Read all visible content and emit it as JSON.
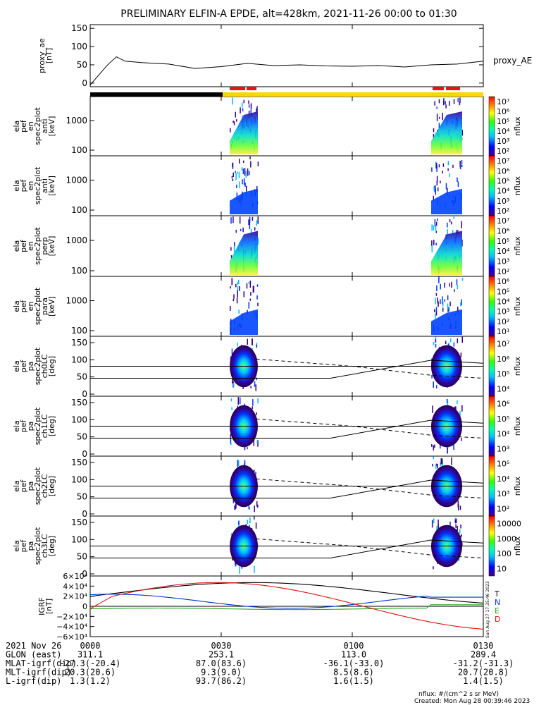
{
  "title": "PRELIMINARY ELFIN-A EPDE, alt=428km, 2021-11-26 00:00 to 01:30",
  "chart_data": [
    {
      "type": "line",
      "id": "proxy_ae",
      "ylabel": [
        "proxy_ae",
        "[nT]"
      ],
      "legend": "proxy_AE",
      "ylim": [
        -10,
        160
      ],
      "yticks": [
        0,
        50,
        100,
        150
      ],
      "x_minutes": [
        0,
        4,
        6,
        8,
        12,
        18,
        24,
        30,
        36,
        42,
        48,
        54,
        60,
        66,
        72,
        78,
        84,
        90
      ],
      "values": [
        -5,
        50,
        72,
        60,
        56,
        52,
        40,
        45,
        54,
        48,
        50,
        47,
        46,
        48,
        44,
        50,
        52,
        60
      ]
    },
    {
      "type": "heatmap",
      "id": "en_anti",
      "ylabel": [
        "ela",
        "pef",
        "en",
        "spec2plot",
        "anti",
        "[keV]"
      ],
      "yticks": [
        "100",
        "1000"
      ],
      "colorbar": {
        "label": "nflux",
        "ticks": [
          "10²",
          "10³",
          "10⁴",
          "10⁵",
          "10⁶",
          "10⁷"
        ]
      }
    },
    {
      "type": "heatmap",
      "id": "en_perp",
      "ylabel": [
        "ela",
        "pef",
        "en",
        "spec2plot",
        "anti",
        "[keV]"
      ],
      "yticks": [
        "100",
        "1000"
      ],
      "colorbar": {
        "label": "nflux",
        "ticks": [
          "10²",
          "10³",
          "10⁴",
          "10⁵",
          "10⁶",
          "10⁷"
        ]
      }
    },
    {
      "type": "heatmap",
      "id": "en_perp2",
      "ylabel": [
        "ela",
        "pef",
        "en",
        "spec2plot",
        "perp",
        "[keV]"
      ],
      "yticks": [
        "100",
        "1000"
      ],
      "colorbar": {
        "label": "nflux",
        "ticks": [
          "10²",
          "10³",
          "10⁴",
          "10⁵",
          "10⁶",
          "10⁷"
        ]
      }
    },
    {
      "type": "heatmap",
      "id": "en_para",
      "ylabel": [
        "ela",
        "pef",
        "en",
        "spec2plot",
        "para",
        "[keV]"
      ],
      "yticks": [
        "100",
        "1000"
      ],
      "colorbar": {
        "label": "nflux",
        "ticks": [
          "10¹",
          "10²",
          "10³",
          "10⁴",
          "10⁵",
          "10⁶"
        ]
      }
    },
    {
      "type": "heatmap",
      "id": "pa_ch0",
      "ylabel": [
        "ela",
        "pef",
        "pa",
        "spec2plot",
        "ch0LC",
        "[deg]"
      ],
      "yticks": [
        "0",
        "50",
        "100",
        "150"
      ],
      "extra_ticks": [
        "0",
        "50",
        "100",
        "150"
      ],
      "colorbar": {
        "label": "nflux",
        "ticks": [
          "10⁴",
          "10⁵",
          "10⁶",
          "10⁷"
        ]
      }
    },
    {
      "type": "heatmap",
      "id": "pa_ch1",
      "ylabel": [
        "ela",
        "pef",
        "pa",
        "spec2plot",
        "ch1LC",
        "[deg]"
      ],
      "yticks": [
        "0",
        "50",
        "100",
        "150"
      ],
      "colorbar": {
        "label": "nflux",
        "ticks": [
          "10³",
          "10⁴",
          "10⁵",
          "10⁶"
        ]
      }
    },
    {
      "type": "heatmap",
      "id": "pa_ch2",
      "ylabel": [
        "ela",
        "pef",
        "pa",
        "spec2plot",
        "ch2LC",
        "[deg]"
      ],
      "yticks": [
        "0",
        "50",
        "100",
        "150"
      ],
      "colorbar": {
        "label": "nflux",
        "ticks": [
          "10²",
          "10³",
          "10⁴",
          "10⁵"
        ]
      }
    },
    {
      "type": "heatmap",
      "id": "pa_ch3",
      "ylabel": [
        "ela",
        "pef",
        "pa",
        "spec2plot",
        "ch3LC",
        "[deg]"
      ],
      "yticks": [
        "0",
        "50",
        "100",
        "150"
      ],
      "colorbar": {
        "label": "nflux",
        "ticks": [
          "10",
          "100",
          "1000",
          "10000"
        ]
      }
    },
    {
      "type": "line",
      "id": "igrf",
      "ylabel": [
        "IGRF",
        "[nT]"
      ],
      "yticks": [
        "6×10⁴",
        "4×10⁴",
        "2×10⁴",
        "0",
        "−2×10⁴",
        "−4×10⁴",
        "−6×10⁴"
      ],
      "legend": [
        "T",
        "N",
        "E",
        "D"
      ],
      "colors": {
        "T": "#000000",
        "N": "#0033cc",
        "E": "#22aa22",
        "D": "#dd1111"
      },
      "ylim": [
        -60000,
        60000
      ]
    }
  ],
  "x_axis": {
    "tick_labels": [
      "0000",
      "0030",
      "0100",
      "0130"
    ],
    "rows": [
      {
        "label": "2021 Nov 26",
        "values": [
          "0000",
          "0030",
          "0100",
          "0130"
        ]
      },
      {
        "label": "GLON (east)",
        "values": [
          "311.1",
          "253.1",
          "113.0",
          "289.4"
        ]
      },
      {
        "label": "MLAT-igrf(dip)",
        "values": [
          "-27.3(-20.4)",
          "87.0(83.6)",
          "-36.1(-33.0)",
          "-31.2(-31.3)"
        ]
      },
      {
        "label": "MLT-igrf(dip)",
        "values": [
          "20.3(20.6)",
          "9.3(9.0)",
          "8.5(8.6)",
          "20.7(20.8)"
        ]
      },
      {
        "label": "L-igrf(dip)",
        "values": [
          "1.3(1.2)",
          "93.7(86.2)",
          "1.6(1.5)",
          "1.4(1.5)"
        ]
      }
    ]
  },
  "footer": {
    "units": "nflux: #/(cm^2 s sr MeV)",
    "created": "Created: Mon Aug 28 00:39:46 2023",
    "side_stamp": "Sun Aug 27 17:35:46 2023"
  },
  "colors": {
    "sunlight_bar": "#ffd700",
    "shadow_bar": "#000000",
    "science_marker": "#ee1111"
  }
}
